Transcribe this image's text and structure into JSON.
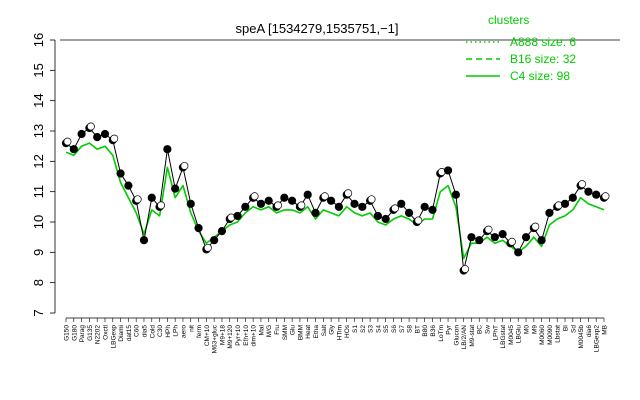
{
  "chart_data": {
    "type": "line",
    "title": "speA [1534279,1535751,−1]",
    "xlabel": "",
    "ylabel": "",
    "ylim": [
      7,
      16
    ],
    "yticks": [
      7,
      8,
      9,
      10,
      11,
      12,
      13,
      14,
      15,
      16
    ],
    "grid": false,
    "legend": {
      "title": "clusters",
      "position": "top-right",
      "color": "#00cc00",
      "items": [
        {
          "label": "A888 size: 6",
          "dash": "dotted"
        },
        {
          "label": "B16 size: 32",
          "dash": "dashed"
        },
        {
          "label": "C4 size: 98",
          "dash": "solid"
        }
      ]
    },
    "x_tick_labels": [
      "G150",
      "G180",
      "Parag",
      "G135",
      "N2202",
      "Oxctl",
      "LBGexp",
      "Diami",
      "dat15",
      "C60",
      "dia5",
      "Cold",
      "C30",
      "HPh",
      "LPh",
      "aero",
      "nit",
      "ferm",
      "CM+10",
      "M63+gluc",
      "M9+18",
      "M9+120",
      "Pyr+10",
      "Efh+10",
      "dim+10",
      "Mal",
      "M/G",
      "Fru",
      "SMM",
      "Glu",
      "BMM",
      "Heat",
      "Etha",
      "Salt",
      "Gly",
      "HTim",
      "HOs",
      "S1",
      "S2",
      "S3",
      "S4",
      "S5",
      "S6",
      "S7",
      "S8",
      "BT",
      "B80",
      "B36",
      "LoTm",
      "Pyr",
      "Glucon",
      "LB/2/AN",
      "M9-stat",
      "BC",
      "Sw",
      "LPhT",
      "LBGstat",
      "M0045",
      "LBGlu",
      "M0",
      "M9",
      "M0060",
      "M0090",
      "Lbstat",
      "BI",
      "Sd",
      "M0045b",
      "dia6",
      "LBGexp2",
      "MB"
    ],
    "series": [
      {
        "name": "mean",
        "color": "#000000",
        "values": [
          12.6,
          12.4,
          12.9,
          13.1,
          12.8,
          12.9,
          12.7,
          11.6,
          11.2,
          10.7,
          9.4,
          10.8,
          10.5,
          12.4,
          11.1,
          11.8,
          10.6,
          9.8,
          9.1,
          9.4,
          9.7,
          10.1,
          10.2,
          10.5,
          10.8,
          10.6,
          10.7,
          10.5,
          10.8,
          10.7,
          10.5,
          10.9,
          10.3,
          10.8,
          10.7,
          10.5,
          10.9,
          10.6,
          10.5,
          10.7,
          10.2,
          10.1,
          10.4,
          10.6,
          10.3,
          10.0,
          10.5,
          10.4,
          11.6,
          11.7,
          10.9,
          8.4,
          9.5,
          9.4,
          9.7,
          9.5,
          9.6,
          9.3,
          9.0,
          9.5,
          9.8,
          9.4,
          10.3,
          10.5,
          10.6,
          10.8,
          11.2,
          11.0,
          10.9,
          10.8
        ]
      },
      {
        "name": "",
        "color": "#00cc00",
        "values": [
          12.3,
          12.2,
          12.5,
          12.6,
          12.4,
          12.5,
          12.2,
          11.3,
          10.8,
          10.3,
          9.6,
          10.4,
          10.2,
          11.8,
          10.8,
          11.2,
          10.3,
          9.7,
          9.3,
          9.5,
          9.7,
          9.9,
          10.0,
          10.3,
          10.5,
          10.4,
          10.5,
          10.3,
          10.4,
          10.4,
          10.3,
          10.5,
          10.1,
          10.4,
          10.3,
          10.2,
          10.5,
          10.3,
          10.2,
          10.3,
          10.0,
          9.9,
          10.1,
          10.2,
          10.1,
          9.9,
          10.1,
          10.1,
          11.0,
          11.2,
          10.5,
          8.8,
          9.3,
          9.3,
          9.5,
          9.3,
          9.4,
          9.2,
          9.0,
          9.2,
          9.5,
          9.2,
          9.9,
          10.1,
          10.2,
          10.4,
          10.8,
          10.6,
          10.5,
          10.4
        ]
      }
    ]
  }
}
